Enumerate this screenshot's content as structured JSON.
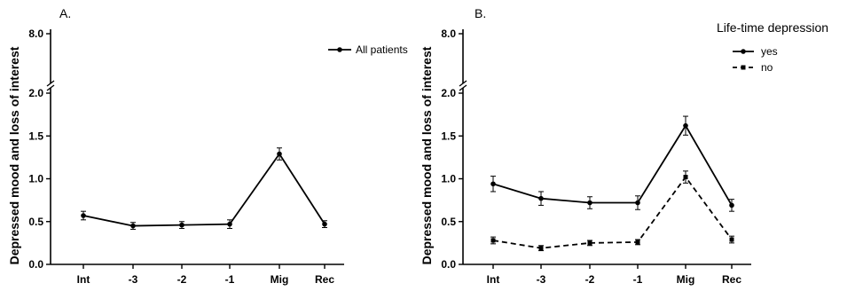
{
  "chart_data": [
    {
      "type": "line",
      "panel_label": "A.",
      "ylabel": "Depressed mood and loss of interest",
      "categories": [
        "Int",
        "-3",
        "-2",
        "-1",
        "Mig",
        "Rec"
      ],
      "y_ticks_lower": [
        "0.0",
        "0.5",
        "1.0",
        "1.5",
        "2.0"
      ],
      "y_tick_upper": "8.0",
      "ylim": [
        0,
        2.0
      ],
      "broken_axis": true,
      "grid": false,
      "legend_position": "top-right",
      "series": [
        {
          "name": "All patients",
          "line_style": "solid",
          "values": [
            0.57,
            0.45,
            0.46,
            0.47,
            1.29,
            0.47
          ],
          "errors": [
            0.05,
            0.04,
            0.04,
            0.05,
            0.07,
            0.04
          ]
        }
      ]
    },
    {
      "type": "line",
      "panel_label": "B.",
      "ylabel": "Depressed mood and loss of interest",
      "categories": [
        "Int",
        "-3",
        "-2",
        "-1",
        "Mig",
        "Rec"
      ],
      "y_ticks_lower": [
        "0.0",
        "0.5",
        "1.0",
        "1.5",
        "2.0"
      ],
      "y_tick_upper": "8.0",
      "ylim": [
        0,
        2.0
      ],
      "broken_axis": true,
      "grid": false,
      "legend_title": "Life-time depression",
      "legend_position": "top-right",
      "series": [
        {
          "name": "yes",
          "line_style": "solid",
          "values": [
            0.94,
            0.77,
            0.72,
            0.72,
            1.62,
            0.69
          ],
          "errors": [
            0.09,
            0.08,
            0.07,
            0.08,
            0.11,
            0.07
          ]
        },
        {
          "name": "no",
          "line_style": "dashed",
          "values": [
            0.28,
            0.19,
            0.25,
            0.26,
            1.02,
            0.29
          ],
          "errors": [
            0.04,
            0.03,
            0.03,
            0.03,
            0.07,
            0.04
          ]
        }
      ]
    }
  ]
}
